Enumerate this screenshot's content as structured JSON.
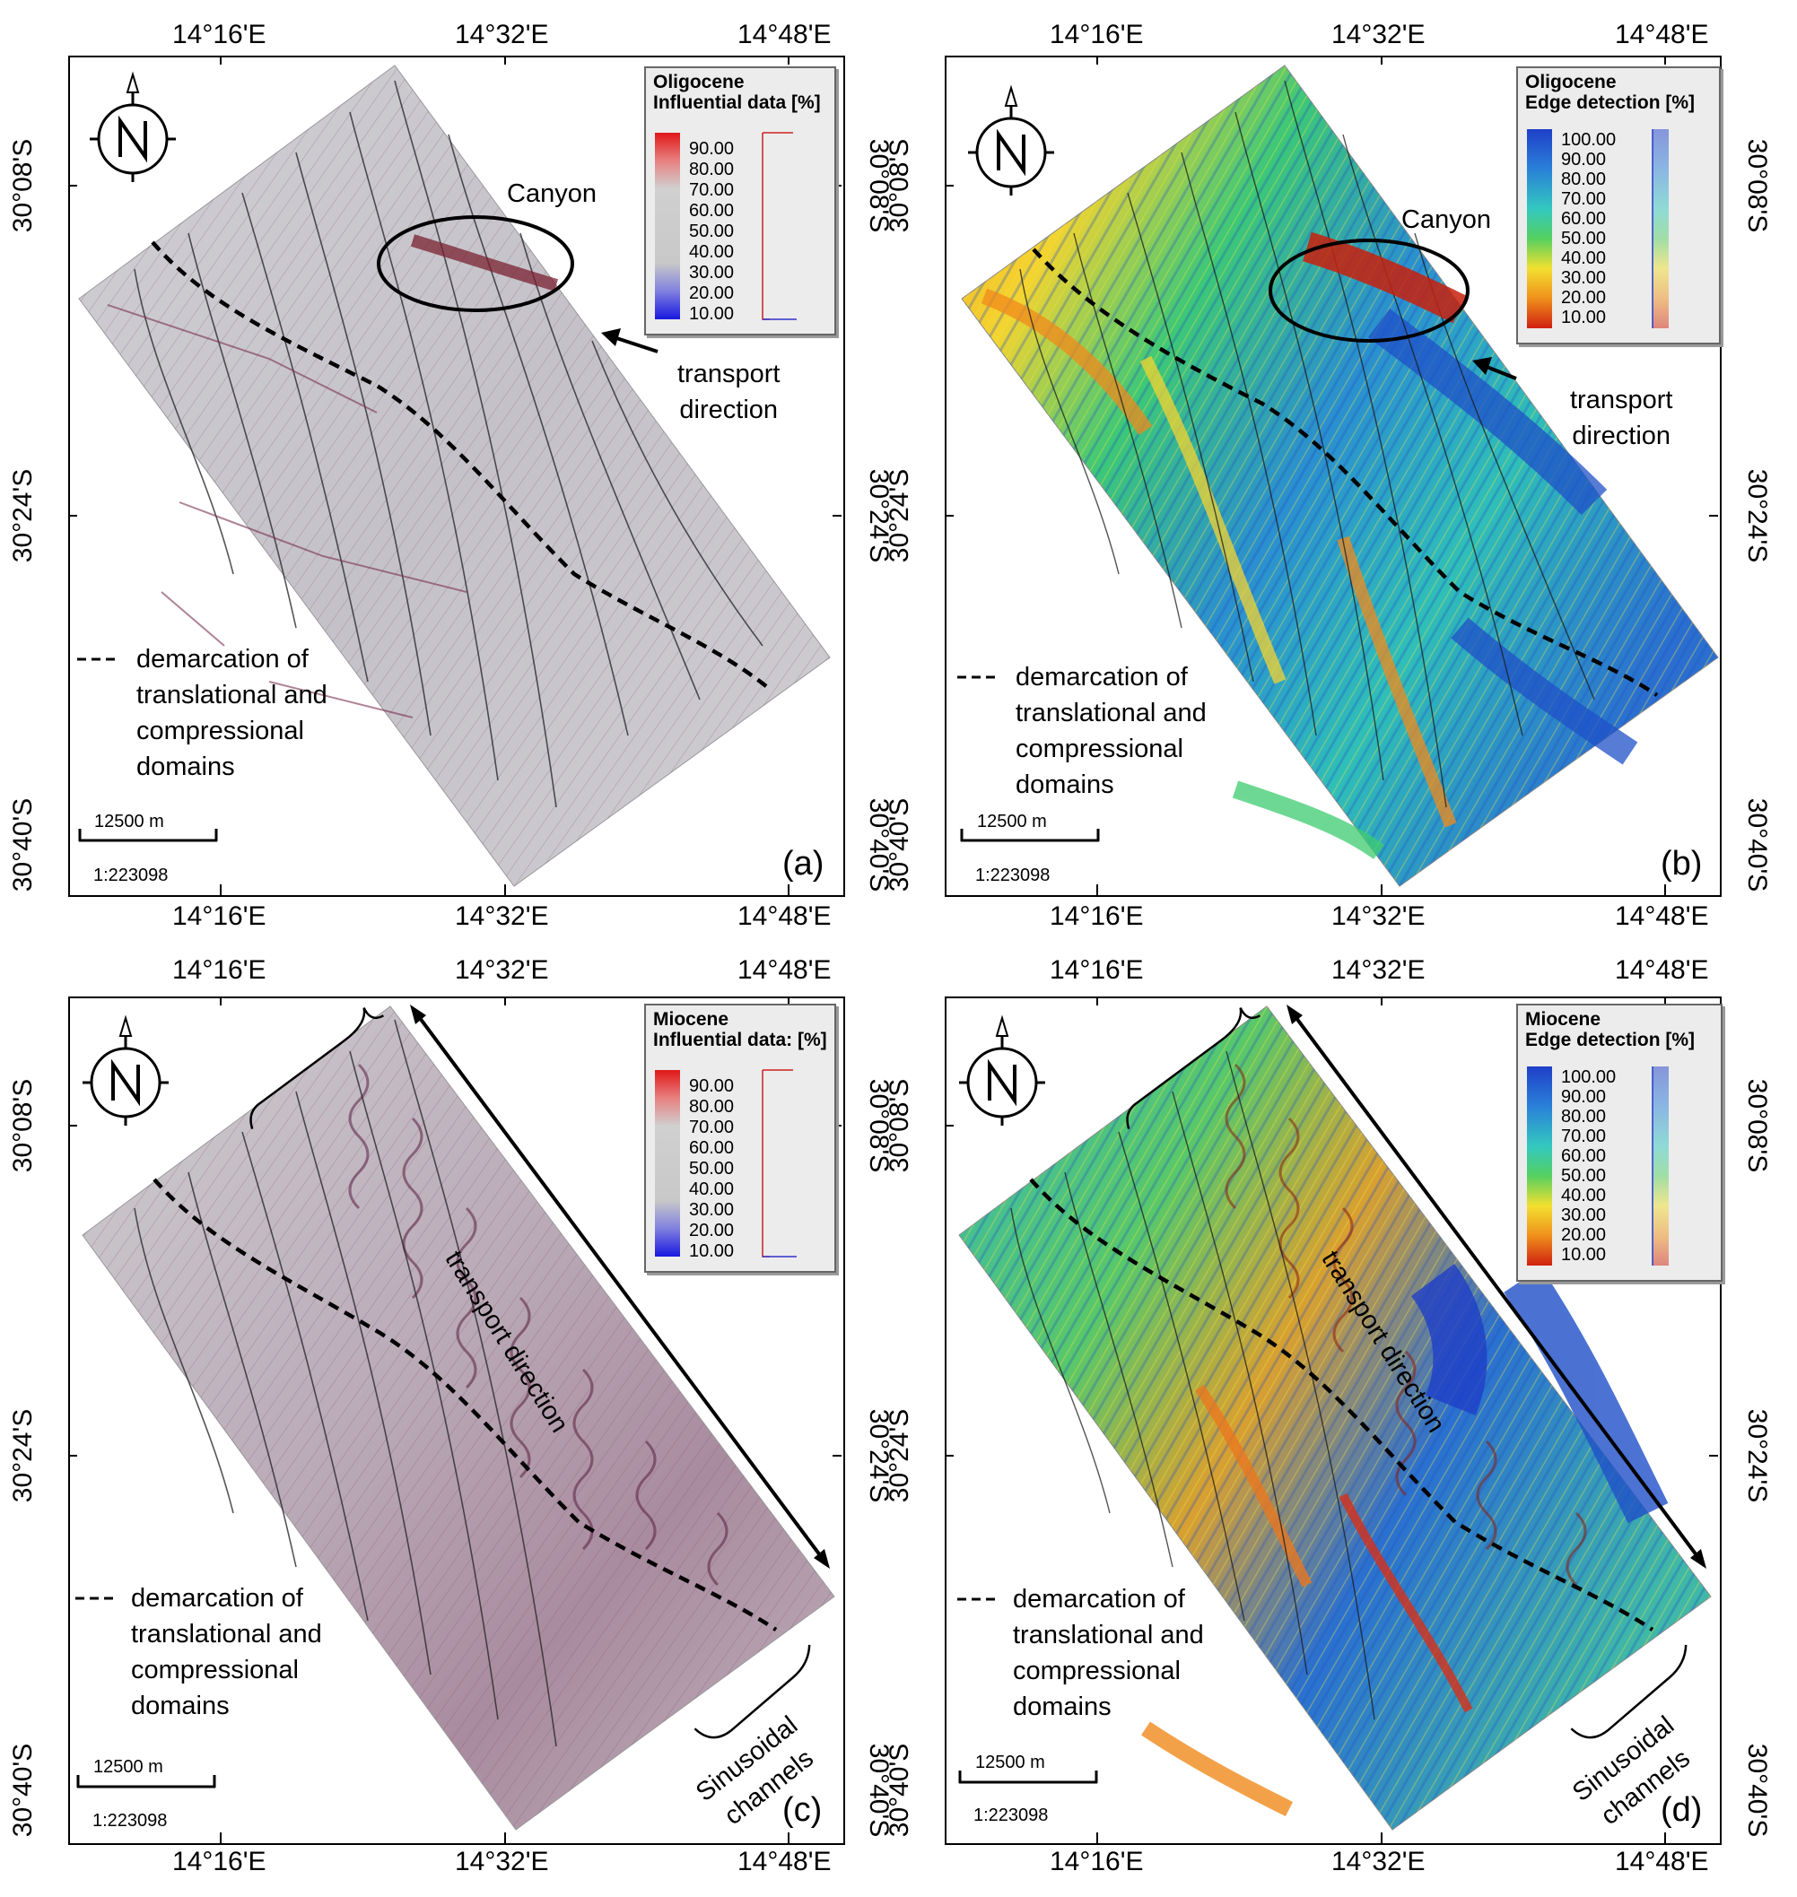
{
  "axes": {
    "lon_ticks": [
      "14°16'E",
      "14°32'E",
      "14°48'E"
    ],
    "lat_ticks": [
      "30°08'S",
      "30°24'S",
      "30°40'S"
    ]
  },
  "colors": {
    "gray_map": "#c7c7c7",
    "red": "#d92020",
    "blue": "#1e3fd0",
    "jet_blue": "#1f55c8",
    "jet_cyan": "#2ec2c0",
    "jet_green": "#4fcf5a",
    "jet_yellow": "#f4e22b",
    "jet_orange": "#f08a1c",
    "jet_red": "#d52a1a"
  },
  "panels": [
    {
      "id": "a",
      "letter": "(a)",
      "style": "gray",
      "legend_title_1": "Oligocene",
      "legend_title_2": "Influential data [%]",
      "legend_values": [
        "90.00",
        "80.00",
        "70.00",
        "60.00",
        "50.00",
        "40.00",
        "30.00",
        "20.00",
        "10.00"
      ],
      "canyon_label": "Canyon",
      "transport_label_1": "transport",
      "transport_label_2": "direction",
      "demarcation_1": "demarcation of",
      "demarcation_2": "translational and",
      "demarcation_3": "compressional",
      "demarcation_4": "domains",
      "scale_label": "12500 m",
      "scale_ratio": "1:223098"
    },
    {
      "id": "b",
      "letter": "(b)",
      "style": "jet",
      "legend_title_1": "Oligocene",
      "legend_title_2": "Edge detection [%]",
      "legend_values": [
        "100.00",
        "90.00",
        "80.00",
        "70.00",
        "60.00",
        "50.00",
        "40.00",
        "30.00",
        "20.00",
        "10.00"
      ],
      "canyon_label": "Canyon",
      "transport_label_1": "transport",
      "transport_label_2": "direction",
      "demarcation_1": "demarcation of",
      "demarcation_2": "translational and",
      "demarcation_3": "compressional",
      "demarcation_4": "domains",
      "scale_label": "12500 m",
      "scale_ratio": "1:223098"
    },
    {
      "id": "c",
      "letter": "(c)",
      "style": "gray",
      "legend_title_1": "Miocene",
      "legend_title_2": "Influential data: [%]",
      "legend_values": [
        "90.00",
        "80.00",
        "70.00",
        "60.00",
        "50.00",
        "40.00",
        "30.00",
        "20.00",
        "10.00"
      ],
      "transport_label": "transport direction",
      "sinusoidal_1": "Sinusoidal",
      "sinusoidal_2": "channels",
      "demarcation_1": "demarcation of",
      "demarcation_2": "translational and",
      "demarcation_3": "compressional",
      "demarcation_4": "domains",
      "scale_label": "12500 m",
      "scale_ratio": "1:223098"
    },
    {
      "id": "d",
      "letter": "(d)",
      "style": "jet",
      "legend_title_1": "Miocene",
      "legend_title_2": "Edge detection [%]",
      "legend_values": [
        "100.00",
        "90.00",
        "80.00",
        "70.00",
        "60.00",
        "50.00",
        "40.00",
        "30.00",
        "20.00",
        "10.00"
      ],
      "transport_label": "transport direction",
      "sinusoidal_1": "Sinusoidal",
      "sinusoidal_2": "channels",
      "demarcation_1": "demarcation of",
      "demarcation_2": "translational and",
      "demarcation_3": "compressional",
      "demarcation_4": "domains",
      "scale_label": "12500 m",
      "scale_ratio": "1:223098"
    }
  ]
}
